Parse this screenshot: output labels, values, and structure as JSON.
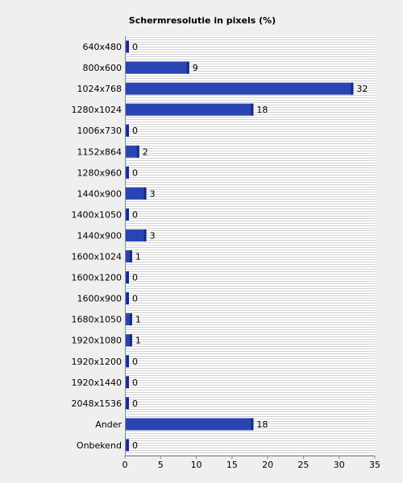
{
  "chart_data": {
    "type": "bar",
    "orientation": "horizontal",
    "title": "Schermresolutie in pixels (%)",
    "categories": [
      "640x480",
      "800x600",
      "1024x768",
      "1280x1024",
      "1006x730",
      "1152x864",
      "1280x960",
      "1440x900",
      "1400x1050",
      "1440x900",
      "1600x1024",
      "1600x1200",
      "1600x900",
      "1680x1050",
      "1920x1080",
      "1920x1200",
      "1920x1440",
      "2048x1536",
      "Ander",
      "Onbekend"
    ],
    "values": [
      0,
      9,
      32,
      18,
      0,
      2,
      0,
      3,
      0,
      3,
      1,
      0,
      0,
      1,
      1,
      0,
      0,
      0,
      18,
      0
    ],
    "xlim": [
      0,
      35
    ],
    "xticks": [
      0,
      5,
      10,
      15,
      20,
      25,
      30,
      35
    ],
    "grid": true,
    "colors": {
      "bar": "#2b44b3",
      "bar_shade": "#1a2a80",
      "plot_bg": "#ffffff",
      "grid": "#d0d0d0",
      "page_bg": "#efefef"
    }
  }
}
